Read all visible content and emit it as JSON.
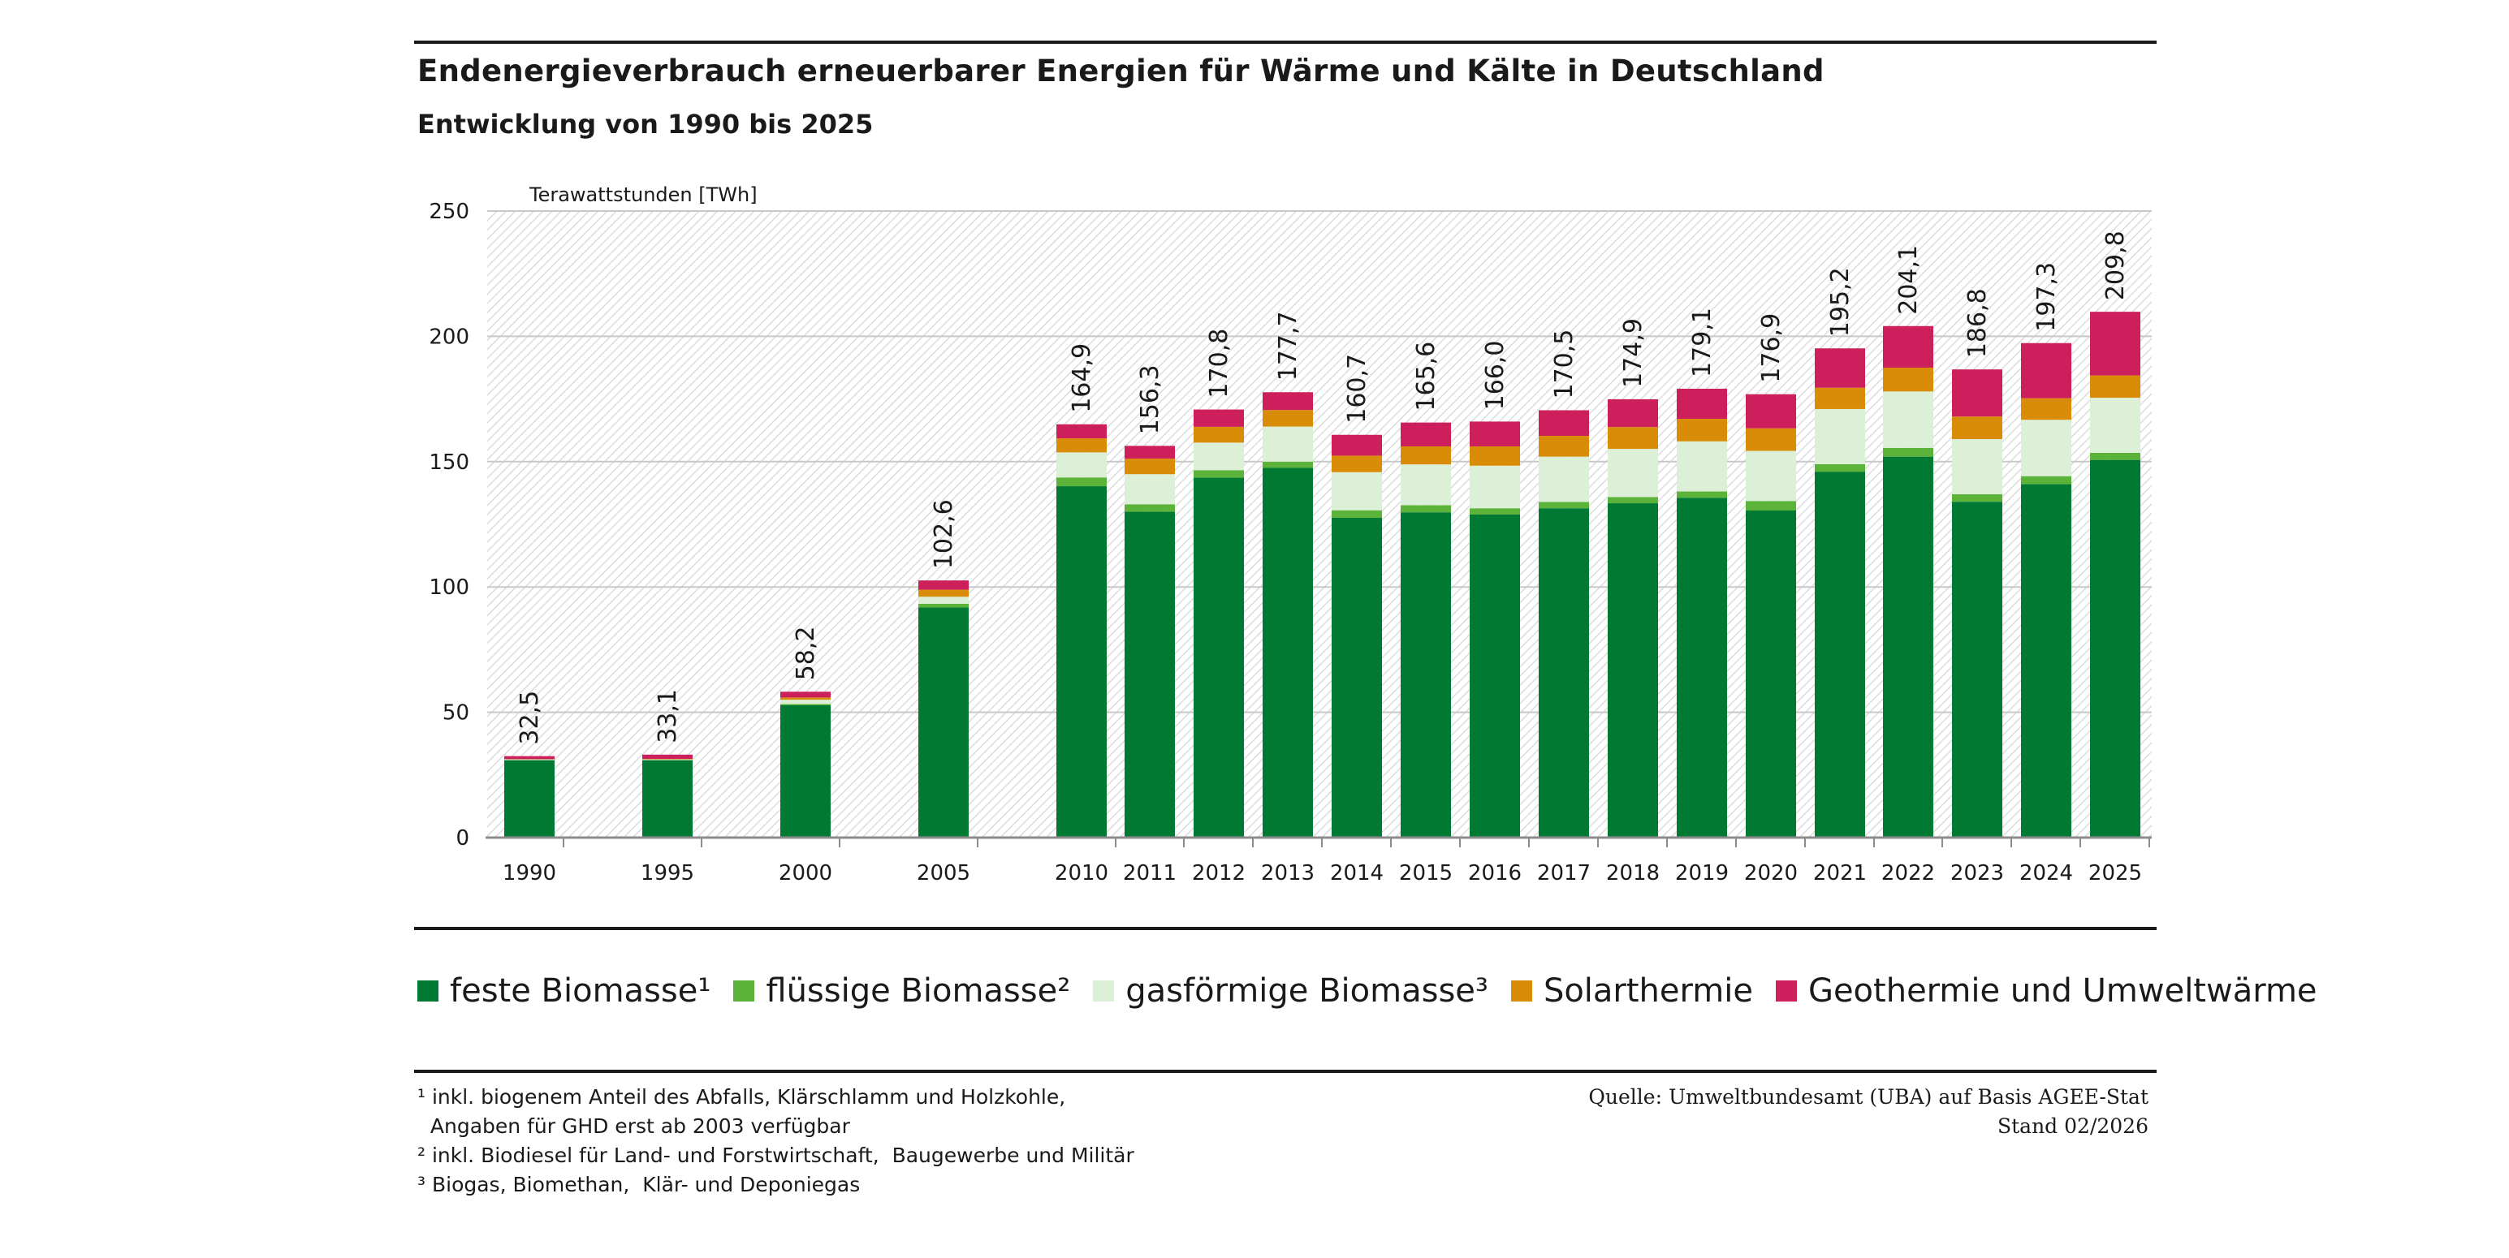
{
  "header": {
    "title": "Endenergieverbrauch erneuerbarer Energien für Wärme und Kälte in Deutschland",
    "subtitle": "Entwicklung von 1990 bis 2025"
  },
  "chart_data": {
    "type": "bar",
    "stacked": true,
    "ylabel": "Terawattstunden [TWh]",
    "ylim": [
      0,
      250
    ],
    "yticks": [
      0,
      50,
      100,
      150,
      200,
      250
    ],
    "grid": true,
    "categories": [
      "1990",
      "1995",
      "2000",
      "2005",
      "2010",
      "2011",
      "2012",
      "2013",
      "2014",
      "2015",
      "2016",
      "2017",
      "2018",
      "2019",
      "2020",
      "2021",
      "2022",
      "2023",
      "2024",
      "2025"
    ],
    "totals": [
      "32,5",
      "33,1",
      "58,2",
      "102,6",
      "164,9",
      "156,3",
      "170,8",
      "177,7",
      "160,7",
      "165,6",
      "166,0",
      "170,5",
      "174,9",
      "179,1",
      "176,9",
      "195,2",
      "204,1",
      "186,8",
      "197,3",
      "209,8"
    ],
    "series": [
      {
        "name": "feste Biomasse¹",
        "color": "#007a33",
        "values": [
          30.9,
          30.9,
          52.8,
          91.8,
          140.2,
          130.0,
          143.6,
          147.5,
          127.6,
          129.8,
          128.9,
          131.4,
          133.4,
          135.6,
          130.5,
          146.0,
          152.0,
          134.0,
          141.0,
          150.7
        ]
      },
      {
        "name": "flüssige Biomasse²",
        "color": "#5bb33a",
        "values": [
          0.0,
          0.0,
          0.5,
          1.5,
          3.5,
          3.0,
          3.0,
          2.5,
          3.0,
          2.8,
          2.5,
          2.5,
          2.5,
          2.5,
          3.8,
          3.0,
          3.5,
          3.0,
          3.2,
          2.8
        ]
      },
      {
        "name": "gasförmige Biomasse³",
        "color": "#dcf0d8",
        "values": [
          0.3,
          0.3,
          1.7,
          2.8,
          10.0,
          12.0,
          11.0,
          14.0,
          15.2,
          16.3,
          17.0,
          18.1,
          19.2,
          20.0,
          20.0,
          22.0,
          22.5,
          22.0,
          22.5,
          22.0
        ]
      },
      {
        "name": "Solarthermie",
        "color": "#d98c07",
        "values": [
          0.1,
          0.2,
          0.9,
          2.8,
          5.6,
          6.2,
          6.3,
          6.6,
          6.6,
          7.2,
          7.7,
          8.3,
          8.7,
          9.0,
          9.0,
          8.5,
          9.5,
          9.0,
          8.6,
          8.9
        ]
      },
      {
        "name": "Geothermie und Umweltwärme",
        "color": "#cc1f5c",
        "values": [
          1.2,
          1.7,
          2.3,
          3.7,
          5.6,
          5.1,
          6.9,
          7.1,
          8.3,
          9.5,
          9.9,
          10.2,
          11.1,
          12.0,
          13.6,
          15.7,
          16.6,
          18.8,
          22.0,
          25.4
        ]
      }
    ]
  },
  "legend": {
    "items": [
      {
        "label": "feste Biomasse¹",
        "color": "#007a33"
      },
      {
        "label": "flüssige Biomasse²",
        "color": "#5bb33a"
      },
      {
        "label": "gasförmige Biomasse³",
        "color": "#dcf0d8"
      },
      {
        "label": "Solarthermie",
        "color": "#d98c07"
      },
      {
        "label": "Geothermie und Umweltwärme",
        "color": "#cc1f5c"
      }
    ]
  },
  "footnotes": {
    "line1": "¹ inkl. biogenem Anteil des Abfalls, Klärschlamm und Holzkohle,",
    "line2": "  Angaben für GHD erst ab 2003 verfügbar",
    "line3": "² inkl. Biodiesel für Land- und Forstwirtschaft,  Baugewerbe und Militär",
    "line4": "³ Biogas, Biomethan,  Klär- und Deponiegas"
  },
  "source": {
    "line1": "Quelle: Umweltbundesamt (UBA) auf Basis AGEE-Stat",
    "line2": "Stand 02/2026"
  }
}
